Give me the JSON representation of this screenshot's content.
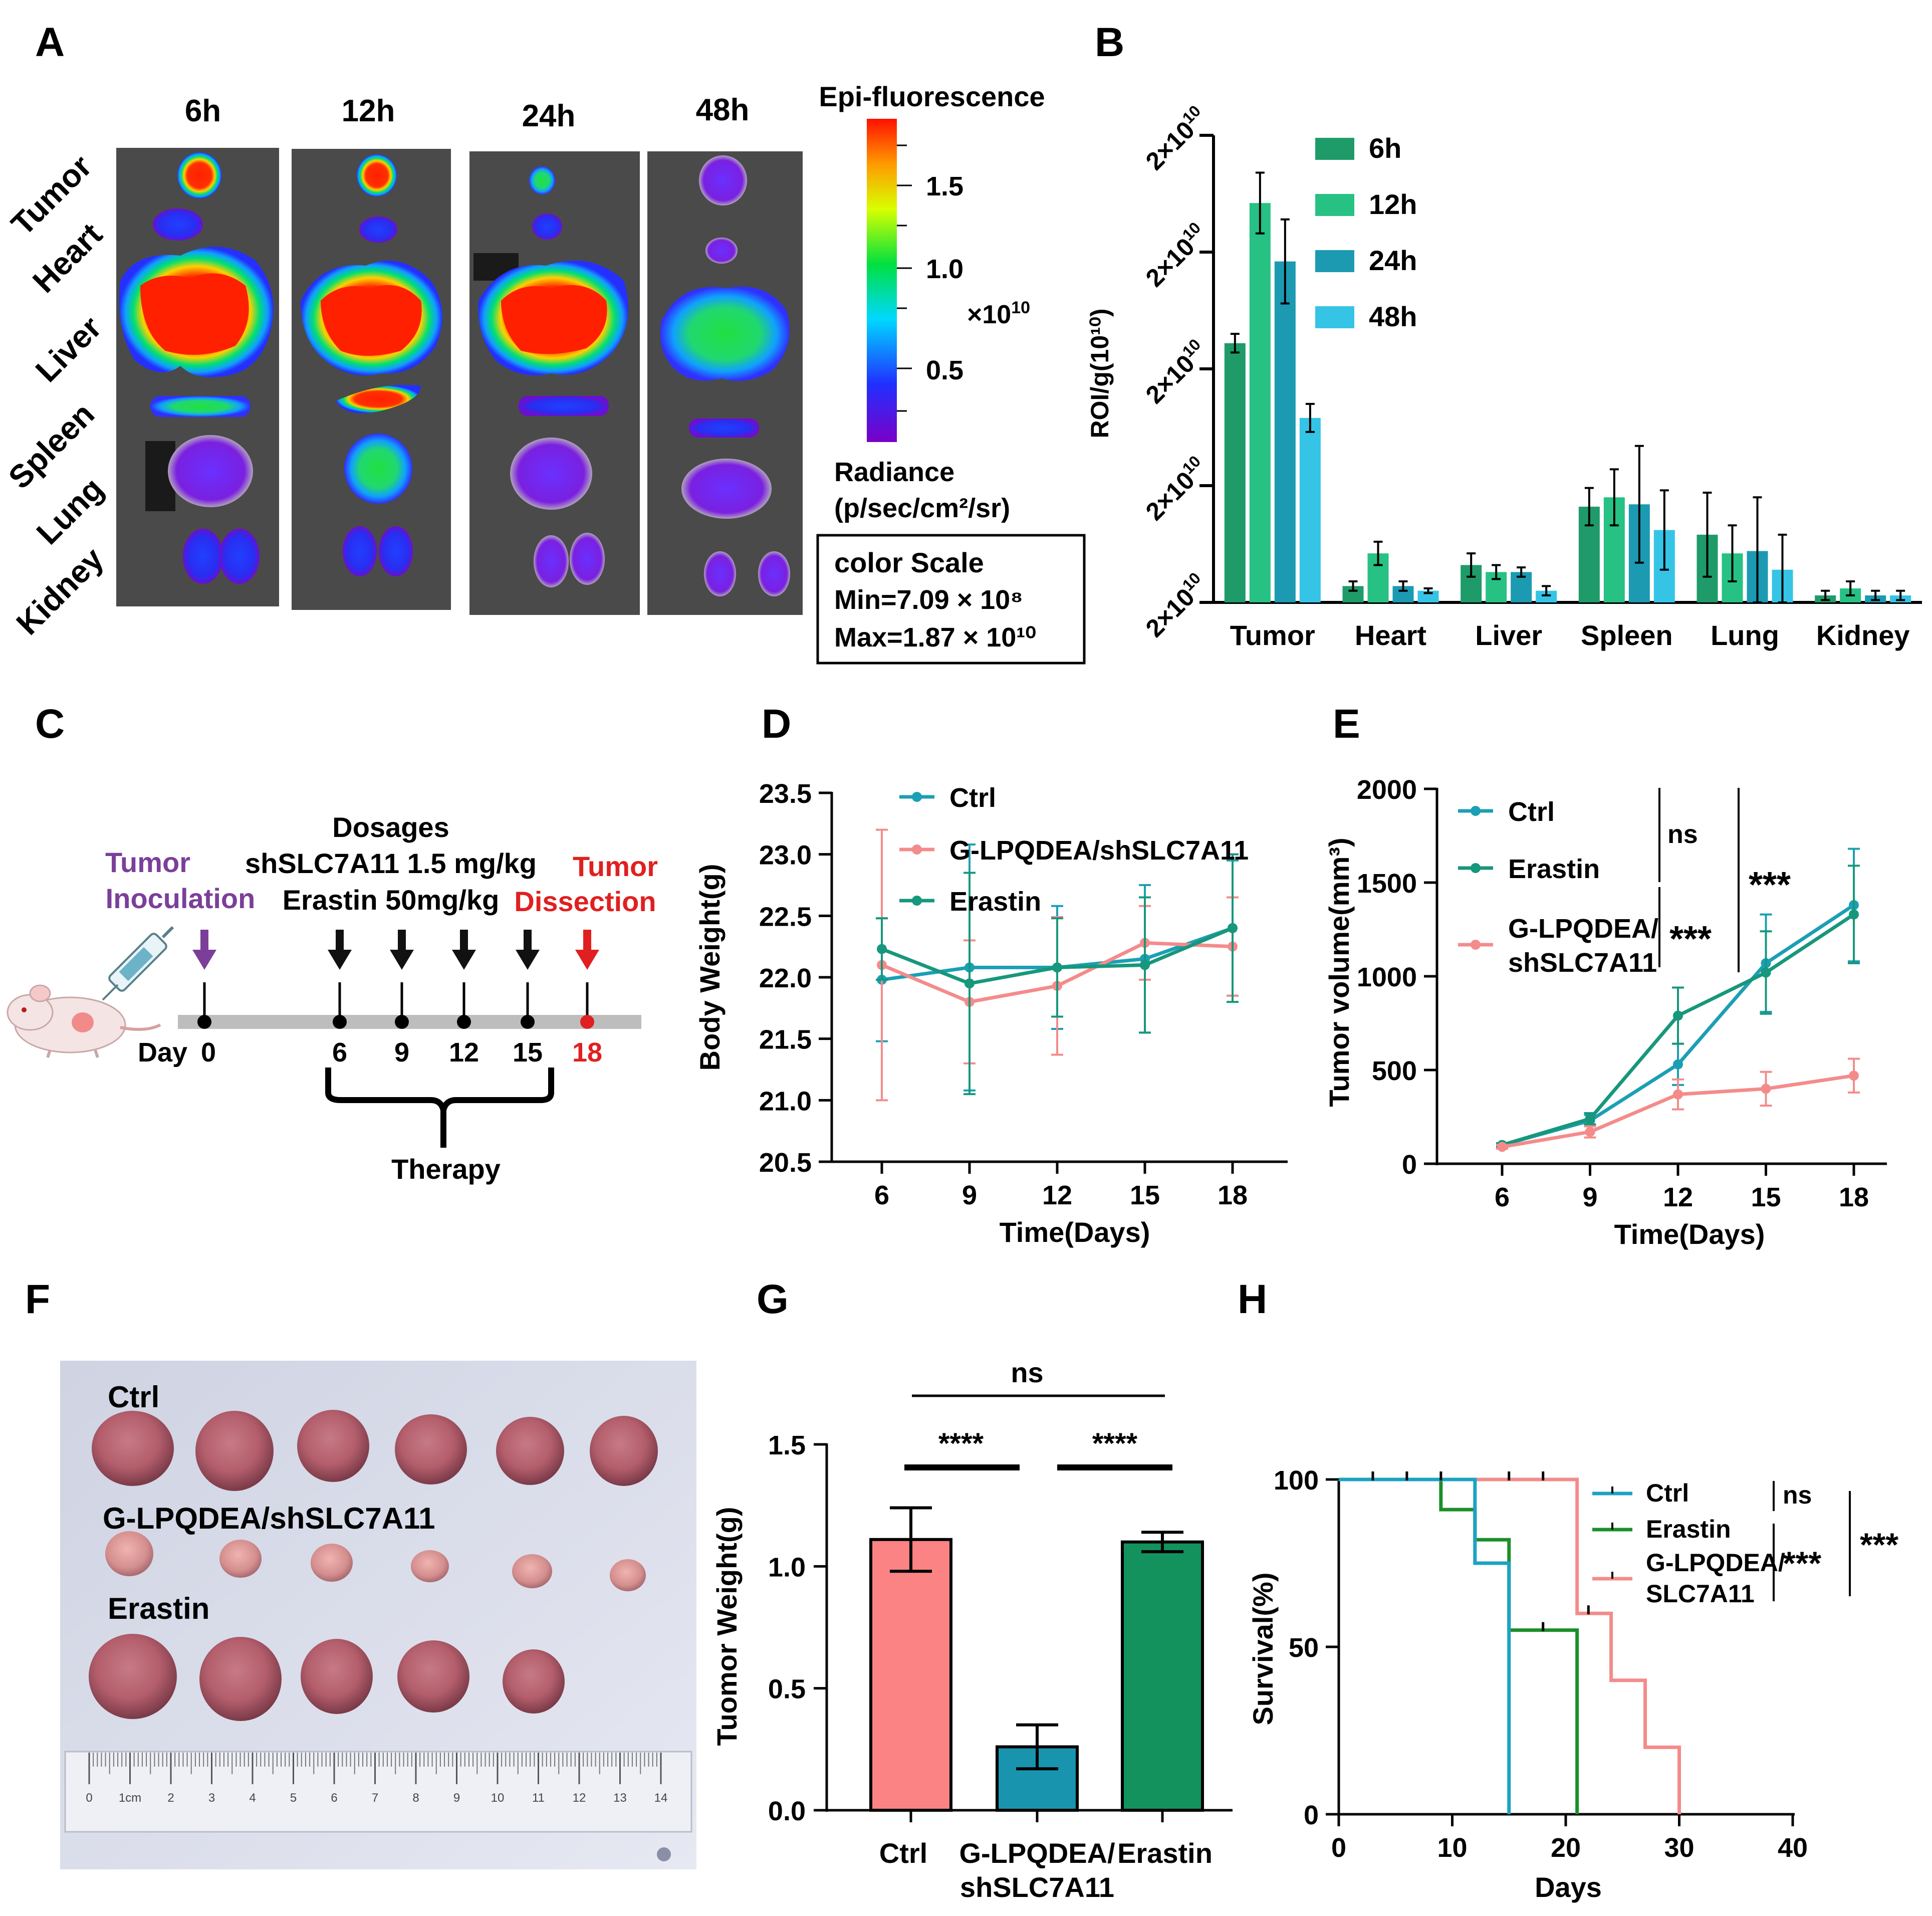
{
  "panel_letters": [
    "A",
    "B",
    "C",
    "D",
    "E",
    "F",
    "G",
    "H"
  ],
  "panelA": {
    "times": [
      "6h",
      "12h",
      "24h",
      "48h"
    ],
    "organs": [
      "Tumor",
      "Heart",
      "Liver",
      "Spleen",
      "Lung",
      "Kidney"
    ],
    "colorbar_title": "Epi-fluorescence",
    "colorbar_ticks": [
      "1.5",
      "1.0",
      "0.5"
    ],
    "colorbar_unit": "×10",
    "colorbar_unit_exp": "10",
    "radiance_label": "Radiance",
    "radiance_unit": "(p/sec/cm²/sr)",
    "scale_box": {
      "title": "color Scale",
      "min": "Min=7.09 × 10⁸",
      "max": "Max=1.87 × 10¹⁰"
    }
  },
  "panelC": {
    "dosages_title": "Dosages",
    "dose1": "shSLC7A11 1.5 mg/kg",
    "dose2": "Erastin 50mg/kg",
    "inoculation": [
      "Tumor",
      "Inoculation"
    ],
    "dissection": [
      "Tumor",
      "Dissection"
    ],
    "day_prefix": "Day",
    "days": [
      "0",
      "6",
      "9",
      "12",
      "15",
      "18"
    ],
    "therapy": "Therapy",
    "colors": {
      "inoculation": "#7b3f9a",
      "dissection": "#e02020"
    }
  },
  "panelF": {
    "labels": [
      "Ctrl",
      "G-LPQDEA/shSLC7A11",
      "Erastin"
    ],
    "ruler_cm": [
      "0",
      "1cm",
      "2",
      "3",
      "4",
      "5",
      "6",
      "7",
      "8",
      "9",
      "10",
      "11",
      "12",
      "13",
      "14"
    ]
  },
  "chart_data": [
    {
      "id": "B",
      "type": "bar",
      "ylabel": "ROI/g(10¹⁰)",
      "ytick_label_base": "2×10",
      "ytick_label_exp": "10",
      "ytick_count": 5,
      "ylim": [
        0,
        2.0
      ],
      "categories": [
        "Tumor",
        "Heart",
        "Liver",
        "Spleen",
        "Lung",
        "Kidney"
      ],
      "series": [
        {
          "name": "6h",
          "color": "#1f9b6a",
          "values": [
            1.11,
            0.07,
            0.16,
            0.41,
            0.29,
            0.03
          ],
          "errors": [
            0.04,
            0.02,
            0.05,
            0.08,
            0.18,
            0.02
          ]
        },
        {
          "name": "12h",
          "color": "#27c184",
          "values": [
            1.71,
            0.21,
            0.13,
            0.45,
            0.21,
            0.06
          ],
          "errors": [
            0.13,
            0.05,
            0.03,
            0.12,
            0.12,
            0.03
          ]
        },
        {
          "name": "24h",
          "color": "#1c9ab2",
          "values": [
            1.46,
            0.07,
            0.13,
            0.42,
            0.22,
            0.03
          ],
          "errors": [
            0.18,
            0.02,
            0.02,
            0.25,
            0.23,
            0.02
          ]
        },
        {
          "name": "48h",
          "color": "#35c4e6",
          "values": [
            0.79,
            0.05,
            0.05,
            0.31,
            0.14,
            0.03
          ],
          "errors": [
            0.06,
            0.01,
            0.02,
            0.17,
            0.15,
            0.02
          ]
        }
      ]
    },
    {
      "id": "D",
      "type": "line",
      "xlabel": "Time(Days)",
      "ylabel": "Body Weight(g)",
      "x": [
        6,
        9,
        12,
        15,
        18
      ],
      "xticks": [
        "6",
        "9",
        "12",
        "15",
        "18"
      ],
      "yticks": [
        "20.5",
        "21.0",
        "21.5",
        "22.0",
        "22.5",
        "23.0",
        "23.5"
      ],
      "ylim": [
        20.5,
        23.5
      ],
      "series": [
        {
          "name": "Ctrl",
          "color": "#1b9fb4",
          "values": [
            21.98,
            22.08,
            22.08,
            22.15,
            22.4
          ],
          "errors": [
            0.5,
            1.0,
            0.5,
            0.6,
            0.55
          ]
        },
        {
          "name": "G-LPQDEA/shSLC7A11",
          "color": "#f48b8b",
          "values": [
            22.1,
            21.8,
            21.93,
            22.28,
            22.25
          ],
          "errors": [
            1.1,
            0.5,
            0.56,
            0.3,
            0.4
          ]
        },
        {
          "name": "Erastin",
          "color": "#17977b",
          "values": [
            22.23,
            21.95,
            22.08,
            22.1,
            22.4
          ],
          "errors": [
            0.25,
            0.9,
            0.4,
            0.55,
            0.6
          ]
        }
      ]
    },
    {
      "id": "E",
      "type": "line",
      "xlabel": "Time(Days)",
      "ylabel": "Tumor volume(mm³)",
      "x": [
        6,
        9,
        12,
        15,
        18
      ],
      "xticks": [
        "6",
        "9",
        "12",
        "15",
        "18"
      ],
      "yticks": [
        "0",
        "500",
        "1000",
        "1500",
        "2000"
      ],
      "ylim": [
        0,
        2000
      ],
      "series": [
        {
          "name": "Ctrl",
          "color": "#1b9fb4",
          "values": [
            100,
            230,
            530,
            1070,
            1380
          ],
          "errors": [
            10,
            30,
            110,
            260,
            300
          ]
        },
        {
          "name": "Erastin",
          "color": "#17977b",
          "values": [
            100,
            240,
            790,
            1020,
            1330
          ],
          "errors": [
            10,
            30,
            150,
            220,
            260
          ]
        },
        {
          "name": "G-LPQDEA/\nshSLC7A11",
          "color": "#f48b8b",
          "values": [
            90,
            170,
            370,
            400,
            470
          ],
          "errors": [
            10,
            30,
            80,
            90,
            90
          ]
        }
      ],
      "legend_lines": [
        [
          "Ctrl"
        ],
        [
          "Erastin"
        ],
        [
          "G-LPQDEA/",
          "shSLC7A11"
        ]
      ],
      "annotations": [
        "ns",
        "***",
        "***"
      ]
    },
    {
      "id": "G",
      "type": "bar",
      "ylabel": "Tuomor Weight(g)",
      "ylim": [
        0,
        1.5
      ],
      "yticks": [
        "0.0",
        "0.5",
        "1.0",
        "1.5"
      ],
      "categories": [
        "Ctrl",
        "G-LPQDEA/\nshSLC7A11",
        "Erastin"
      ],
      "xtick_lines": [
        [
          "Ctrl"
        ],
        [
          "G-LPQDEA/",
          "shSLC7A11"
        ],
        [
          "Erastin"
        ]
      ],
      "series": [
        {
          "name": "Tumor weight",
          "values": [
            1.11,
            0.26,
            1.1
          ],
          "errors": [
            0.13,
            0.09,
            0.04
          ],
          "colors": [
            "#fb8383",
            "#1994ae",
            "#13925e"
          ]
        }
      ],
      "annotations": [
        "ns",
        "****",
        "****"
      ]
    },
    {
      "id": "H",
      "type": "line",
      "subtype": "survival",
      "xlabel": "Days",
      "ylabel": "Survival(%)",
      "xticks": [
        "0",
        "10",
        "20",
        "30",
        "40"
      ],
      "yticks": [
        "0",
        "50",
        "100"
      ],
      "xlim": [
        0,
        40
      ],
      "ylim": [
        0,
        100
      ],
      "series": [
        {
          "name": "Ctrl",
          "color": "#1ba3c2",
          "steps": [
            [
              0,
              100
            ],
            [
              12,
              100
            ],
            [
              12,
              75
            ],
            [
              15,
              75
            ],
            [
              15,
              0
            ]
          ],
          "censor": [
            [
              3,
              100
            ],
            [
              6,
              100
            ],
            [
              9,
              100
            ]
          ]
        },
        {
          "name": "Erastin",
          "color": "#1b8f29",
          "steps": [
            [
              0,
              100
            ],
            [
              9,
              100
            ],
            [
              9,
              91
            ],
            [
              12,
              91
            ],
            [
              12,
              82
            ],
            [
              15,
              82
            ],
            [
              15,
              55
            ],
            [
              21,
              55
            ],
            [
              21,
              0
            ]
          ],
          "censor": [
            [
              18,
              55
            ]
          ]
        },
        {
          "name": "G-LPQDEA/\nSLC7A11",
          "color": "#f48b8b",
          "steps": [
            [
              0,
              100
            ],
            [
              21,
              100
            ],
            [
              21,
              60
            ],
            [
              24,
              60
            ],
            [
              24,
              40
            ],
            [
              27,
              40
            ],
            [
              27,
              20
            ],
            [
              30,
              20
            ],
            [
              30,
              0
            ]
          ],
          "censor": [
            [
              15,
              100
            ],
            [
              18,
              100
            ],
            [
              22,
              60
            ]
          ]
        }
      ],
      "legend_lines": [
        [
          "Ctrl"
        ],
        [
          "Erastin"
        ],
        [
          "G-LPQDEA/",
          "SLC7A11"
        ]
      ],
      "annotations": [
        "ns",
        "***",
        "***"
      ]
    }
  ]
}
